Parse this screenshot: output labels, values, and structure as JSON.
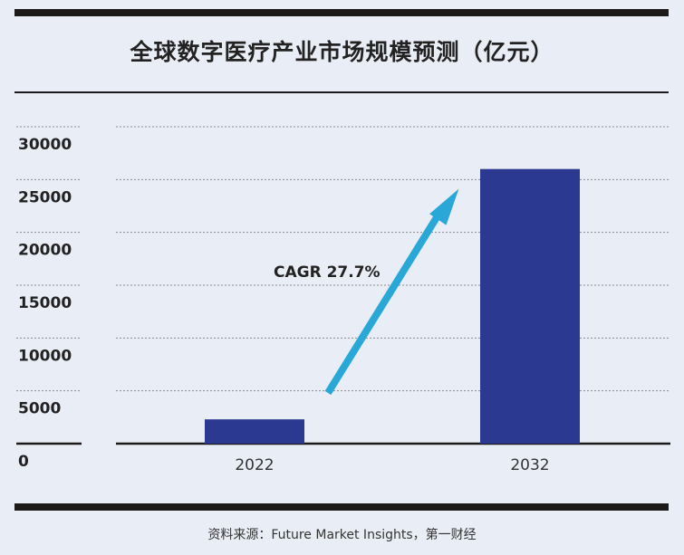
{
  "title": "全球数字医疗产业市场规模预测（亿元）",
  "source": "资料来源：Future Market Insights，第一财经",
  "colors": {
    "bar": "#2b3990",
    "arrow": "#29a8d8",
    "background": "#e9eef6",
    "rule": "#1d1a1a",
    "grid": "#8a8a8a"
  },
  "chart_data": {
    "type": "bar",
    "title": "全球数字医疗产业市场规模预测（亿元）",
    "xlabel": "",
    "ylabel": "",
    "categories": [
      "2022",
      "2032"
    ],
    "values": [
      2300,
      26000
    ],
    "ylim": [
      0,
      30000
    ],
    "yticks": [
      0,
      5000,
      10000,
      15000,
      20000,
      25000,
      30000
    ],
    "ytick_labels": [
      "0",
      "5000",
      "10000",
      "15000",
      "20000",
      "25000",
      "30000"
    ],
    "grid": true,
    "annotation": {
      "text": "CAGR 27.7%",
      "type": "arrow"
    }
  }
}
